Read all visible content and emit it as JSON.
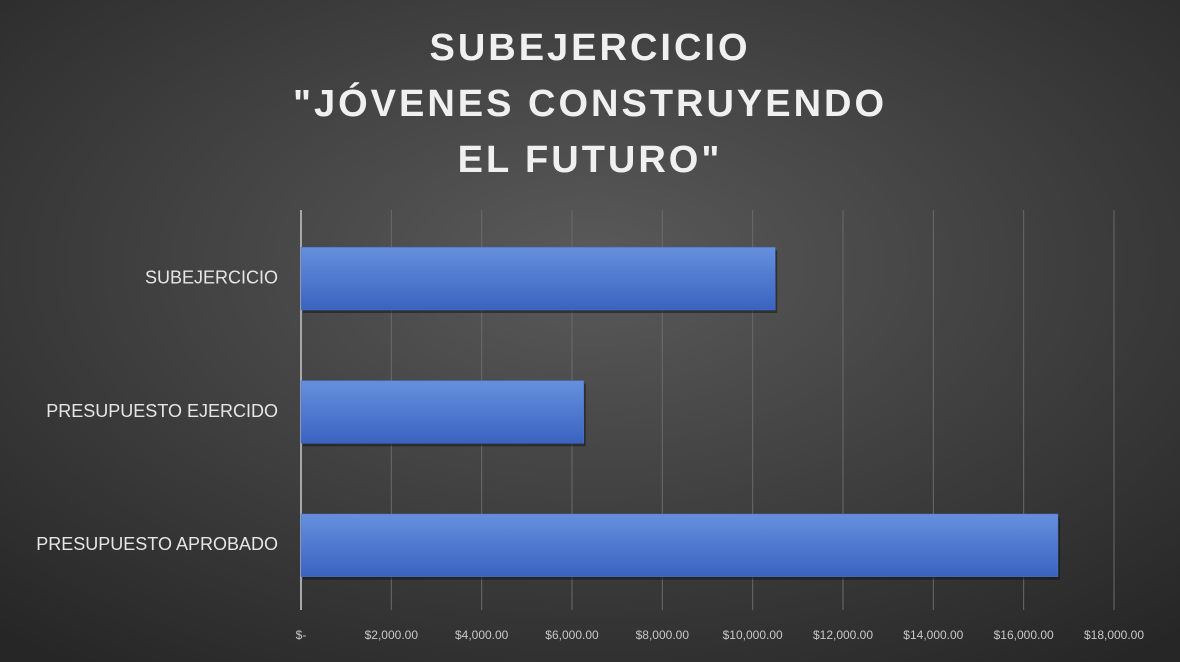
{
  "chart_data": {
    "type": "hbar",
    "title": [
      "SUBEJERCICIO",
      "\"JÓVENES CONSTRUYENDO",
      "EL FUTURO\""
    ],
    "categories": [
      "SUBEJERCICIO",
      "PRESUPUESTO EJERCIDO",
      "PRESUPUESTO APROBADO"
    ],
    "values": [
      10500,
      6260,
      16760
    ],
    "color": "#4a75cf",
    "xlim": [
      0,
      18000
    ],
    "xticks": [
      {
        "value": 0,
        "label": "$-"
      },
      {
        "value": 2000,
        "label": "$2,000.00"
      },
      {
        "value": 4000,
        "label": "$4,000.00"
      },
      {
        "value": 6000,
        "label": "$6,000.00"
      },
      {
        "value": 8000,
        "label": "$8,000.00"
      },
      {
        "value": 10000,
        "label": "$10,000.00"
      },
      {
        "value": 12000,
        "label": "$12,000.00"
      },
      {
        "value": 14000,
        "label": "$14,000.00"
      },
      {
        "value": 16000,
        "label": "$16,000.00"
      },
      {
        "value": 18000,
        "label": "$18,000.00"
      }
    ],
    "grid": true
  }
}
